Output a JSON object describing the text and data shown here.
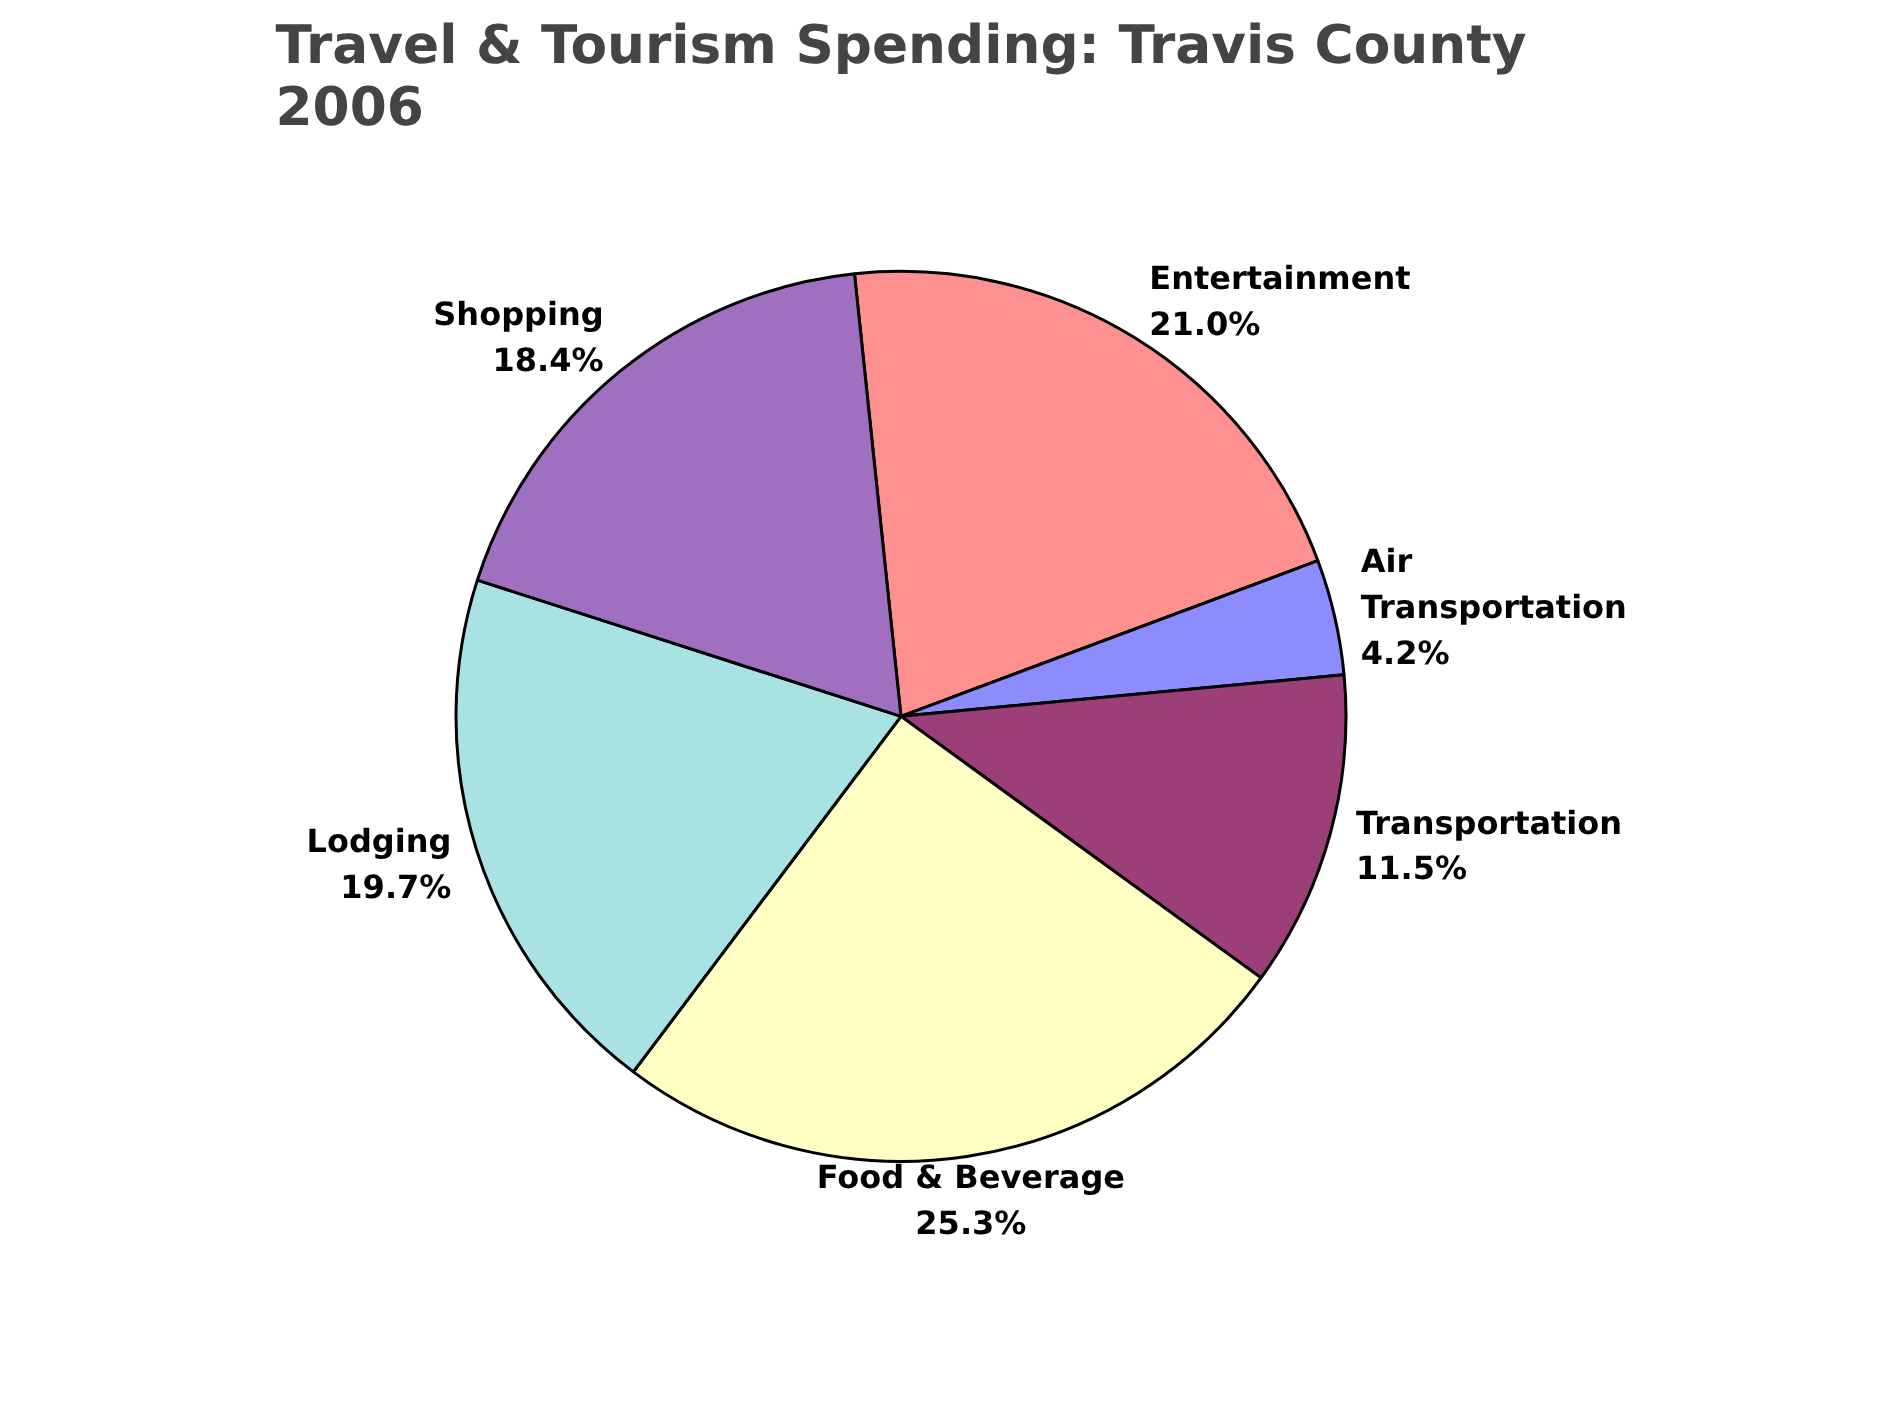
{
  "chart_data": {
    "type": "pie",
    "title": "Travel & Tourism Spending: Travis County\n2006",
    "categories": [
      "Entertainment",
      "Air\nTransportation",
      "Transportation",
      "Food & Beverage",
      "Lodging",
      "Shopping"
    ],
    "values": [
      21.0,
      4.2,
      11.5,
      25.3,
      19.7,
      18.4
    ],
    "value_labels": [
      "21.0%",
      "4.2%",
      "11.5%",
      "25.3%",
      "19.7%",
      "18.4%"
    ],
    "colors": [
      "#ff9090",
      "#8c8cff",
      "#9c3f78",
      "#ffffc4",
      "#a8e2e2",
      "#a070c0"
    ]
  }
}
